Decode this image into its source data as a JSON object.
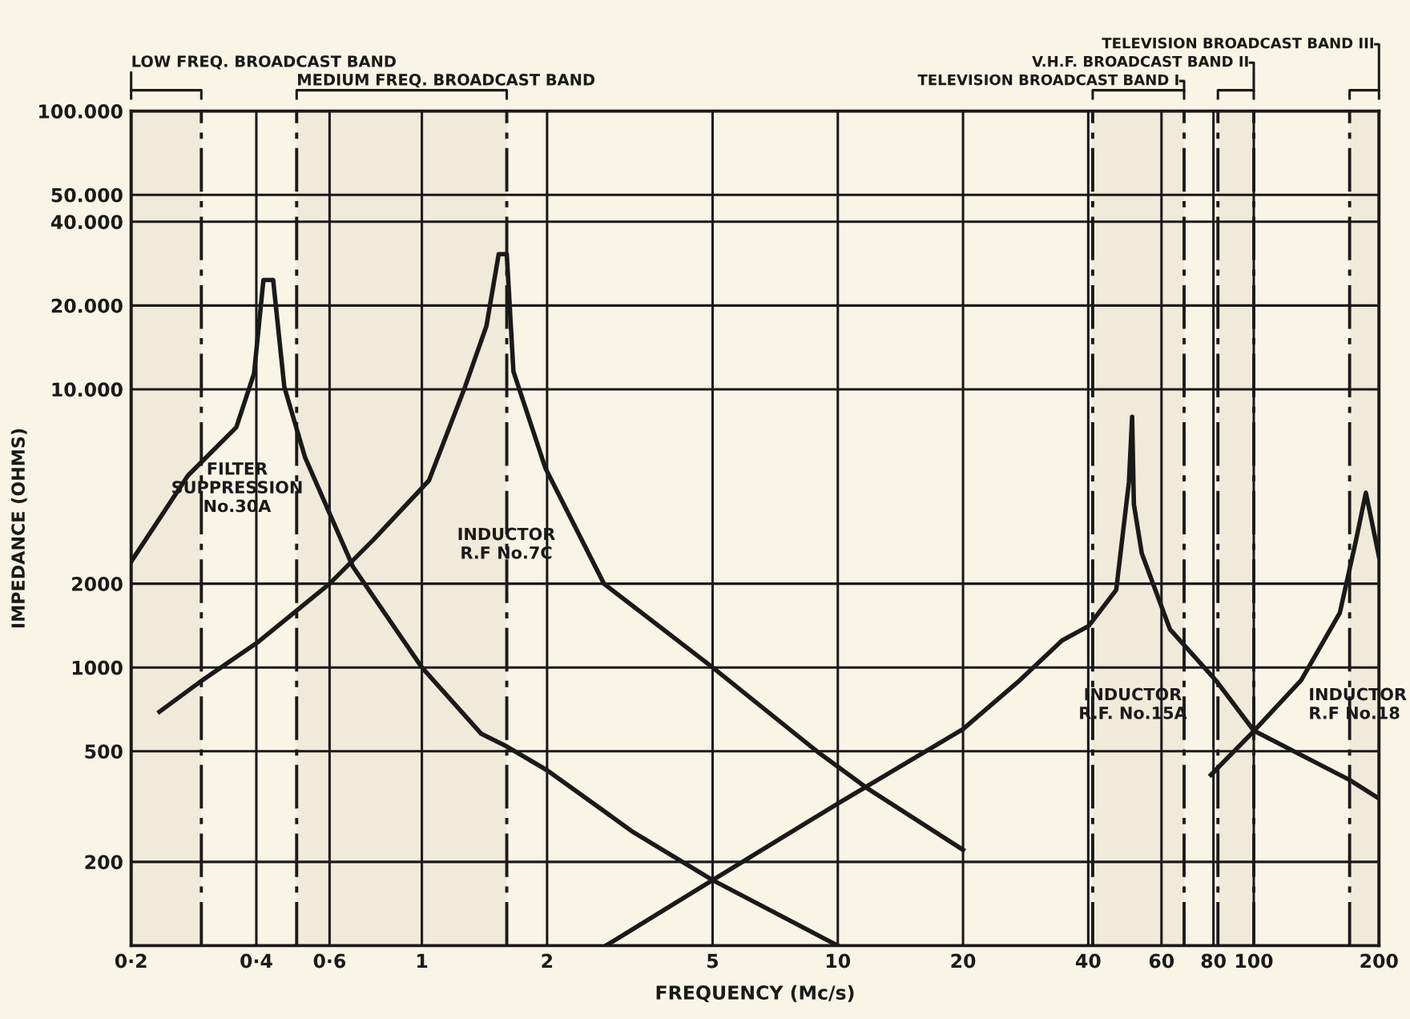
{
  "chart_data": {
    "type": "line",
    "xlabel": "FREQUENCY (Mc/s)",
    "ylabel": "IMPEDANCE (OHMS)",
    "log": "xy",
    "grid": true,
    "marker": "none",
    "line_style": "solid",
    "xlim": [
      0.2,
      200
    ],
    "ylim": [
      100,
      100000
    ],
    "xticks": [
      {
        "value": 0.2,
        "label": "0·2"
      },
      {
        "value": 0.4,
        "label": "0·4"
      },
      {
        "value": 0.6,
        "label": "0·6"
      },
      1,
      2,
      5,
      10,
      20,
      40,
      60,
      80,
      100,
      200
    ],
    "yticks": [
      200,
      500,
      1000,
      2000,
      {
        "value": 10000,
        "label": "10.000"
      },
      {
        "value": 20000,
        "label": "20.000"
      },
      {
        "value": 40000,
        "label": "40.000"
      },
      {
        "value": 50000,
        "label": "50.000"
      },
      {
        "value": 100000,
        "label": "100.000"
      }
    ],
    "series": [
      {
        "color": "#1a1a1a",
        "x": [
          0.2,
          0.274,
          0.358,
          0.395,
          0.416,
          0.439,
          0.467,
          0.524,
          0.683,
          1.0,
          1.39,
          1.6,
          2.0,
          3.22,
          5.0,
          10.0
        ],
        "values": [
          2400,
          4900,
          7300,
          11400,
          24700,
          24700,
          10200,
          5680,
          2300,
          1000,
          577,
          520,
          427,
          256,
          172,
          100
        ]
      },
      {
        "color": "#1a1a1a",
        "x": [
          0.234,
          0.297,
          0.405,
          0.6,
          0.767,
          1.04,
          1.27,
          1.43,
          1.53,
          1.6,
          1.66,
          1.98,
          2.74,
          5.0,
          8.9,
          11.7,
          20.0
        ],
        "values": [
          693,
          901,
          1238,
          2000,
          2890,
          4700,
          10200,
          16900,
          30600,
          30600,
          11600,
          5220,
          2000,
          1000,
          500,
          370,
          221
        ]
      },
      {
        "color": "#1a1a1a",
        "x": [
          2.77,
          5.0,
          10.0,
          20.0,
          27.4,
          34.6,
          40.1,
          46.7,
          50.1,
          51.0,
          51.5,
          53.8,
          62.9,
          81.0,
          100.0,
          170.0,
          200.0
        ],
        "values": [
          100,
          172,
          324,
          600,
          900,
          1250,
          1410,
          1900,
          4640,
          7960,
          3860,
          2570,
          1370,
          900,
          593,
          394,
          338
        ]
      },
      {
        "color": "#1a1a1a",
        "x": [
          78.9,
          100.0,
          130.0,
          161.0,
          176.0,
          186.0,
          200.0
        ],
        "values": [
          411,
          590,
          900,
          1570,
          2850,
          4250,
          2500
        ]
      }
    ],
    "annotations": [
      "FILTER\nSUPPRESSION\nNo.30A",
      "INDUCTOR\nR.F No.7C",
      "INDUCTOR\nR.F. No.15A",
      "INDUCTOR\nR.F No.18",
      "V.H.F. BROADCAST BAND II",
      "TELEVISION BROADCAST BAND III"
    ],
    "bands": [
      {
        "axis": "x",
        "from": 0.2,
        "to": 0.295,
        "label": "LOW FREQ. BROADCAST BAND"
      },
      {
        "axis": "x",
        "from": 0.5,
        "to": 1.6,
        "label": "MEDIUM FREQ. BROADCAST BAND"
      },
      {
        "axis": "x",
        "from": 41,
        "to": 68,
        "label": "TELEVISION BROADCAST BAND I"
      },
      {
        "axis": "x",
        "from": 82,
        "to": 100
      },
      {
        "axis": "x",
        "from": 170,
        "to": 200
      }
    ]
  }
}
